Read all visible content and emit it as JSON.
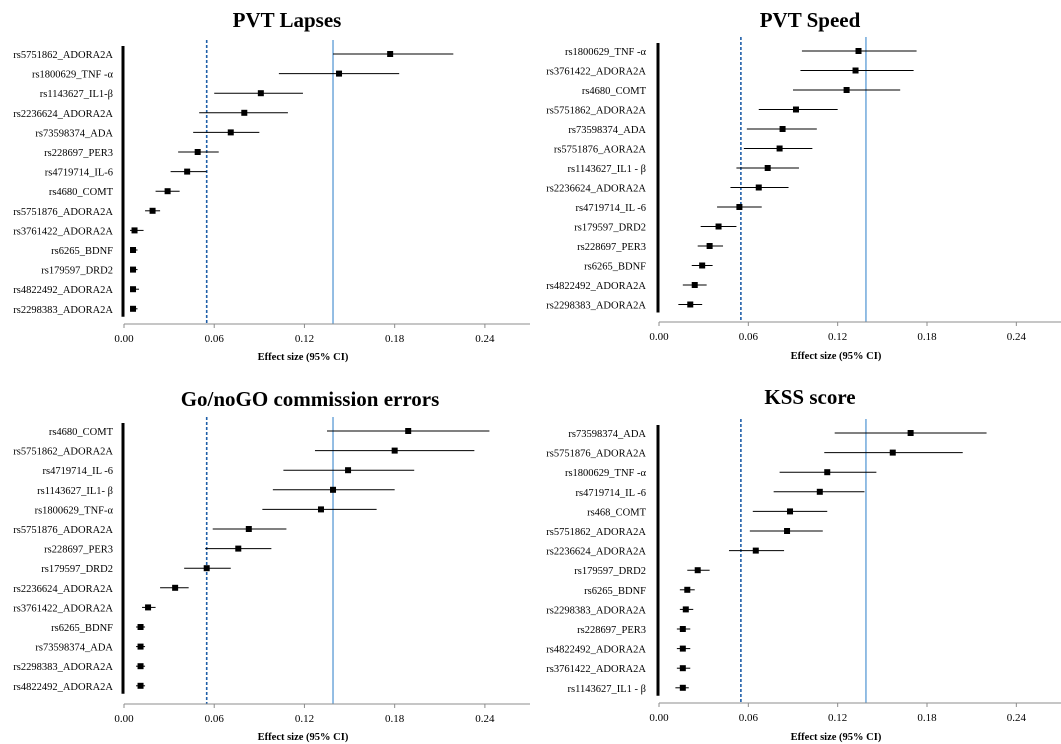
{
  "chart_data": [
    {
      "type": "forest",
      "title": "PVT Lapses",
      "xlabel": "Effect size (95% CI)",
      "xlim": [
        0,
        0.27
      ],
      "xticks": [
        "0.00",
        "0.06",
        "0.12",
        "0.18",
        "0.24"
      ],
      "reference_lines": {
        "dashed": 0.055,
        "solid": 0.139
      },
      "rows": [
        {
          "label": "rs5751862_ADORA2A",
          "estimate": 0.177,
          "lower": 0.139,
          "upper": 0.219
        },
        {
          "label": "rs1800629_TNF -α",
          "estimate": 0.143,
          "lower": 0.103,
          "upper": 0.183
        },
        {
          "label": "rs1143627_IL1-β",
          "estimate": 0.091,
          "lower": 0.06,
          "upper": 0.119
        },
        {
          "label": "rs2236624_ADORA2A",
          "estimate": 0.08,
          "lower": 0.05,
          "upper": 0.109
        },
        {
          "label": "rs73598374_ADA",
          "estimate": 0.071,
          "lower": 0.046,
          "upper": 0.09
        },
        {
          "label": "rs228697_PER3",
          "estimate": 0.049,
          "lower": 0.036,
          "upper": 0.063
        },
        {
          "label": "rs4719714_IL-6",
          "estimate": 0.042,
          "lower": 0.031,
          "upper": 0.055
        },
        {
          "label": "rs4680_COMT",
          "estimate": 0.029,
          "lower": 0.021,
          "upper": 0.037
        },
        {
          "label": "rs5751876_ADORA2A",
          "estimate": 0.019,
          "lower": 0.014,
          "upper": 0.024
        },
        {
          "label": "rs3761422_ADORA2A",
          "estimate": 0.007,
          "lower": 0.004,
          "upper": 0.013
        },
        {
          "label": "rs6265_BDNF",
          "estimate": 0.006,
          "lower": 0.004,
          "upper": 0.009
        },
        {
          "label": "rs179597_DRD2",
          "estimate": 0.006,
          "lower": 0.004,
          "upper": 0.009
        },
        {
          "label": "rs4822492_ADORA2A",
          "estimate": 0.006,
          "lower": 0.004,
          "upper": 0.01
        },
        {
          "label": "rs2298383_ADORA2A",
          "estimate": 0.006,
          "lower": 0.004,
          "upper": 0.009
        }
      ]
    },
    {
      "type": "forest",
      "title": "PVT Speed",
      "xlabel": "Effect size (95% CI)",
      "xlim": [
        0,
        0.27
      ],
      "xticks": [
        "0.00",
        "0.06",
        "0.12",
        "0.18",
        "0.24"
      ],
      "reference_lines": {
        "dashed": 0.055,
        "solid": 0.139
      },
      "rows": [
        {
          "label": "rs1800629_TNF -α",
          "estimate": 0.134,
          "lower": 0.096,
          "upper": 0.173
        },
        {
          "label": "rs3761422_ADORA2A",
          "estimate": 0.132,
          "lower": 0.095,
          "upper": 0.171
        },
        {
          "label": "rs4680_COMT",
          "estimate": 0.126,
          "lower": 0.09,
          "upper": 0.162
        },
        {
          "label": "rs5751862_ADORA2A",
          "estimate": 0.092,
          "lower": 0.067,
          "upper": 0.12
        },
        {
          "label": "rs73598374_ADA",
          "estimate": 0.083,
          "lower": 0.059,
          "upper": 0.106
        },
        {
          "label": "rs5751876_AORA2A",
          "estimate": 0.081,
          "lower": 0.057,
          "upper": 0.103
        },
        {
          "label": "rs1143627_IL1 - β",
          "estimate": 0.073,
          "lower": 0.052,
          "upper": 0.094
        },
        {
          "label": "rs2236624_ADORA2A",
          "estimate": 0.067,
          "lower": 0.048,
          "upper": 0.087
        },
        {
          "label": "rs4719714_IL -6",
          "estimate": 0.054,
          "lower": 0.039,
          "upper": 0.069
        },
        {
          "label": "rs179597_DRD2",
          "estimate": 0.04,
          "lower": 0.028,
          "upper": 0.052
        },
        {
          "label": "rs228697_PER3",
          "estimate": 0.034,
          "lower": 0.026,
          "upper": 0.043
        },
        {
          "label": "rs6265_BDNF",
          "estimate": 0.029,
          "lower": 0.022,
          "upper": 0.036
        },
        {
          "label": "rs4822492_ADORA2A",
          "estimate": 0.024,
          "lower": 0.016,
          "upper": 0.032
        },
        {
          "label": "rs2298383_ADORA2A",
          "estimate": 0.021,
          "lower": 0.013,
          "upper": 0.029
        }
      ]
    },
    {
      "type": "forest",
      "title": "Go/noGO commission errors",
      "xlabel": "Effect size (95% CI)",
      "xlim": [
        0,
        0.27
      ],
      "xticks": [
        "0.00",
        "0.06",
        "0.12",
        "0.18",
        "0.24"
      ],
      "reference_lines": {
        "dashed": 0.055,
        "solid": 0.139
      },
      "rows": [
        {
          "label": "rs4680_COMT",
          "estimate": 0.189,
          "lower": 0.135,
          "upper": 0.243
        },
        {
          "label": "rs5751862_ADORA2A",
          "estimate": 0.18,
          "lower": 0.127,
          "upper": 0.233
        },
        {
          "label": "rs4719714_IL -6",
          "estimate": 0.149,
          "lower": 0.106,
          "upper": 0.193
        },
        {
          "label": "rs1143627_IL1- β",
          "estimate": 0.139,
          "lower": 0.099,
          "upper": 0.18
        },
        {
          "label": "rs1800629_TNF-α",
          "estimate": 0.131,
          "lower": 0.092,
          "upper": 0.168
        },
        {
          "label": "rs5751876_ADORA2A",
          "estimate": 0.083,
          "lower": 0.059,
          "upper": 0.108
        },
        {
          "label": "rs228697_PER3",
          "estimate": 0.076,
          "lower": 0.054,
          "upper": 0.098
        },
        {
          "label": "rs179597_DRD2",
          "estimate": 0.055,
          "lower": 0.04,
          "upper": 0.071
        },
        {
          "label": "rs2236624_ADORA2A",
          "estimate": 0.034,
          "lower": 0.024,
          "upper": 0.043
        },
        {
          "label": "rs3761422_ADORA2A",
          "estimate": 0.016,
          "lower": 0.012,
          "upper": 0.021
        },
        {
          "label": "rs6265_BDNF",
          "estimate": 0.011,
          "lower": 0.008,
          "upper": 0.014
        },
        {
          "label": "rs73598374_ADA",
          "estimate": 0.011,
          "lower": 0.008,
          "upper": 0.014
        },
        {
          "label": "rs2298383_ADORA2A",
          "estimate": 0.011,
          "lower": 0.008,
          "upper": 0.014
        },
        {
          "label": "rs4822492_ADORA2A",
          "estimate": 0.011,
          "lower": 0.008,
          "upper": 0.014
        }
      ]
    },
    {
      "type": "forest",
      "title": "KSS score",
      "xlabel": "Effect size (95% CI)",
      "xlim": [
        0,
        0.27
      ],
      "xticks": [
        "0.00",
        "0.06",
        "0.12",
        "0.18",
        "0.24"
      ],
      "reference_lines": {
        "dashed": 0.055,
        "solid": 0.139
      },
      "rows": [
        {
          "label": "rs73598374_ADA",
          "estimate": 0.169,
          "lower": 0.118,
          "upper": 0.22
        },
        {
          "label": "rs5751876_ADORA2A",
          "estimate": 0.157,
          "lower": 0.111,
          "upper": 0.204
        },
        {
          "label": "rs1800629_TNF -α",
          "estimate": 0.113,
          "lower": 0.081,
          "upper": 0.146
        },
        {
          "label": "rs4719714_IL -6",
          "estimate": 0.108,
          "lower": 0.077,
          "upper": 0.138
        },
        {
          "label": "rs468_COMT",
          "estimate": 0.088,
          "lower": 0.063,
          "upper": 0.113
        },
        {
          "label": "rs5751862_ADORA2A",
          "estimate": 0.086,
          "lower": 0.061,
          "upper": 0.11
        },
        {
          "label": "rs2236624_ADORA2A",
          "estimate": 0.065,
          "lower": 0.047,
          "upper": 0.084
        },
        {
          "label": "rs179597_DRD2",
          "estimate": 0.026,
          "lower": 0.019,
          "upper": 0.034
        },
        {
          "label": "rs6265_BDNF",
          "estimate": 0.019,
          "lower": 0.014,
          "upper": 0.024
        },
        {
          "label": "rs2298383_ADORA2A",
          "estimate": 0.018,
          "lower": 0.014,
          "upper": 0.023
        },
        {
          "label": "rs228697_PER3",
          "estimate": 0.016,
          "lower": 0.012,
          "upper": 0.021
        },
        {
          "label": "rs4822492_ADORA2A",
          "estimate": 0.016,
          "lower": 0.012,
          "upper": 0.021
        },
        {
          "label": "rs3761422_ADORA2A",
          "estimate": 0.016,
          "lower": 0.012,
          "upper": 0.021
        },
        {
          "label": "rs1143627_IL1 - β",
          "estimate": 0.016,
          "lower": 0.011,
          "upper": 0.02
        }
      ]
    }
  ],
  "colors": {
    "ci_line": "#000000",
    "marker": "#000000",
    "dashed_reference": "#1f5fa8",
    "solid_reference": "#5b9bd5",
    "axis": "#8c8c8c",
    "row_bar": "#000000"
  }
}
